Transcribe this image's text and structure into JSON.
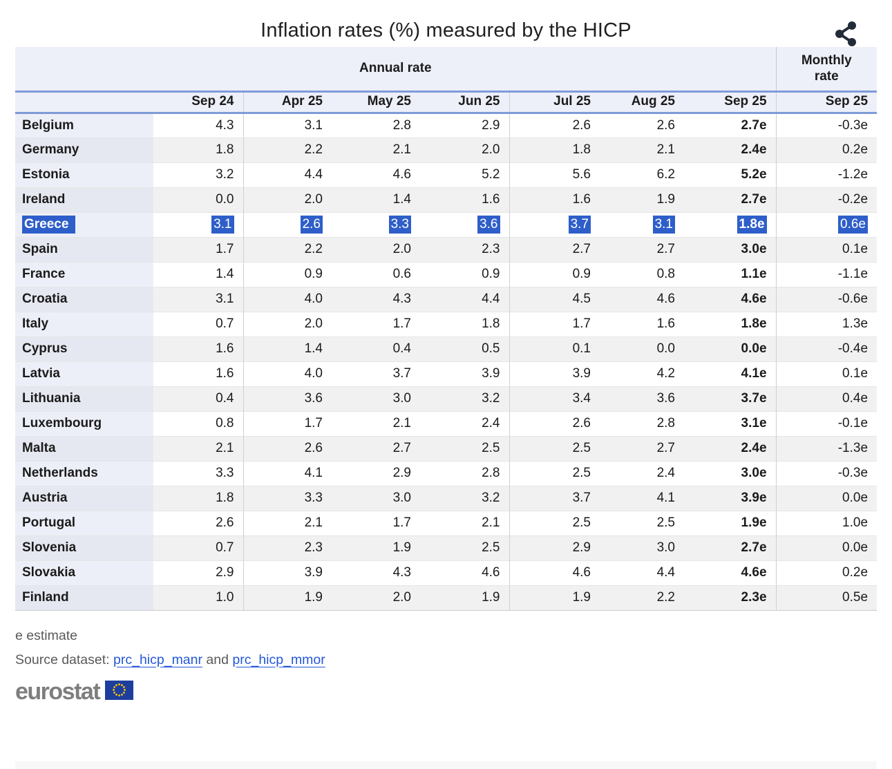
{
  "chart_data": {
    "type": "table",
    "title": "Inflation rates (%) measured by the HICP",
    "group_headers": [
      {
        "label": "Annual rate",
        "columns": 7
      },
      {
        "label": "Monthly rate",
        "columns": 1
      }
    ],
    "columns": [
      "Sep 24",
      "Apr 25",
      "May 25",
      "Jun 25",
      "Jul 25",
      "Aug 25",
      "Sep 25",
      "Sep 25"
    ],
    "bold_column_index": 6,
    "highlighted_row": "Greece",
    "rows": [
      {
        "country": "Belgium",
        "values": [
          "4.3",
          "3.1",
          "2.8",
          "2.9",
          "2.6",
          "2.6",
          "2.7e",
          "-0.3e"
        ]
      },
      {
        "country": "Germany",
        "values": [
          "1.8",
          "2.2",
          "2.1",
          "2.0",
          "1.8",
          "2.1",
          "2.4e",
          "0.2e"
        ]
      },
      {
        "country": "Estonia",
        "values": [
          "3.2",
          "4.4",
          "4.6",
          "5.2",
          "5.6",
          "6.2",
          "5.2e",
          "-1.2e"
        ]
      },
      {
        "country": "Ireland",
        "values": [
          "0.0",
          "2.0",
          "1.4",
          "1.6",
          "1.6",
          "1.9",
          "2.7e",
          "-0.2e"
        ]
      },
      {
        "country": "Greece",
        "values": [
          "3.1",
          "2.6",
          "3.3",
          "3.6",
          "3.7",
          "3.1",
          "1.8e",
          "0.6e"
        ]
      },
      {
        "country": "Spain",
        "values": [
          "1.7",
          "2.2",
          "2.0",
          "2.3",
          "2.7",
          "2.7",
          "3.0e",
          "0.1e"
        ]
      },
      {
        "country": "France",
        "values": [
          "1.4",
          "0.9",
          "0.6",
          "0.9",
          "0.9",
          "0.8",
          "1.1e",
          "-1.1e"
        ]
      },
      {
        "country": "Croatia",
        "values": [
          "3.1",
          "4.0",
          "4.3",
          "4.4",
          "4.5",
          "4.6",
          "4.6e",
          "-0.6e"
        ]
      },
      {
        "country": "Italy",
        "values": [
          "0.7",
          "2.0",
          "1.7",
          "1.8",
          "1.7",
          "1.6",
          "1.8e",
          "1.3e"
        ]
      },
      {
        "country": "Cyprus",
        "values": [
          "1.6",
          "1.4",
          "0.4",
          "0.5",
          "0.1",
          "0.0",
          "0.0e",
          "-0.4e"
        ]
      },
      {
        "country": "Latvia",
        "values": [
          "1.6",
          "4.0",
          "3.7",
          "3.9",
          "3.9",
          "4.2",
          "4.1e",
          "0.1e"
        ]
      },
      {
        "country": "Lithuania",
        "values": [
          "0.4",
          "3.6",
          "3.0",
          "3.2",
          "3.4",
          "3.6",
          "3.7e",
          "0.4e"
        ]
      },
      {
        "country": "Luxembourg",
        "values": [
          "0.8",
          "1.7",
          "2.1",
          "2.4",
          "2.6",
          "2.8",
          "3.1e",
          "-0.1e"
        ]
      },
      {
        "country": "Malta",
        "values": [
          "2.1",
          "2.6",
          "2.7",
          "2.5",
          "2.5",
          "2.7",
          "2.4e",
          "-1.3e"
        ]
      },
      {
        "country": "Netherlands",
        "values": [
          "3.3",
          "4.1",
          "2.9",
          "2.8",
          "2.5",
          "2.4",
          "3.0e",
          "-0.3e"
        ]
      },
      {
        "country": "Austria",
        "values": [
          "1.8",
          "3.3",
          "3.0",
          "3.2",
          "3.7",
          "4.1",
          "3.9e",
          "0.0e"
        ]
      },
      {
        "country": "Portugal",
        "values": [
          "2.6",
          "2.1",
          "1.7",
          "2.1",
          "2.5",
          "2.5",
          "1.9e",
          "1.0e"
        ]
      },
      {
        "country": "Slovenia",
        "values": [
          "0.7",
          "2.3",
          "1.9",
          "2.5",
          "2.9",
          "3.0",
          "2.7e",
          "0.0e"
        ]
      },
      {
        "country": "Slovakia",
        "values": [
          "2.9",
          "3.9",
          "4.3",
          "4.6",
          "4.6",
          "4.4",
          "4.6e",
          "0.2e"
        ]
      },
      {
        "country": "Finland",
        "values": [
          "1.0",
          "1.9",
          "2.0",
          "1.9",
          "1.9",
          "2.2",
          "2.3e",
          "0.5e"
        ]
      }
    ],
    "footnote": "e estimate"
  },
  "footer": {
    "note": "e estimate",
    "source_label": "Source dataset:",
    "link1": "prc_hicp_manr",
    "conjunction": "and",
    "link2": "prc_hicp_mmor",
    "logo_text": "eurostat"
  },
  "icons": {
    "share": "share-nodes",
    "flag": "eu-flag"
  },
  "colors": {
    "selection_highlight": "#2e5ec9",
    "header_background": "#edf0f9",
    "header_rule_blue": "#7e9bd8",
    "link_blue": "#2458d8",
    "eu_flag_blue": "#1e3e9e",
    "eu_flag_stars": "#ffcc00",
    "logo_gray": "#7e7e7e"
  }
}
